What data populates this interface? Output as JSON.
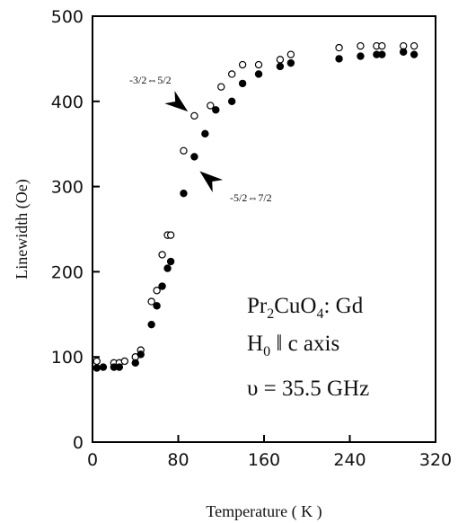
{
  "chart_data": {
    "type": "scatter",
    "xlabel": "Temperature ( K )",
    "ylabel": "Linewidth (Oe)",
    "xlim": [
      0,
      320
    ],
    "ylim": [
      0,
      500
    ],
    "xticks": [
      "0",
      "80",
      "160",
      "240",
      "320"
    ],
    "yticks": [
      "0",
      "100",
      "200",
      "300",
      "400",
      "500"
    ],
    "grid": false,
    "series": [
      {
        "marker": "open-circle",
        "points": [
          [
            4,
            95
          ],
          [
            20,
            93
          ],
          [
            25,
            93
          ],
          [
            30,
            95
          ],
          [
            40,
            100
          ],
          [
            45,
            108
          ],
          [
            55,
            165
          ],
          [
            60,
            178
          ],
          [
            65,
            220
          ],
          [
            70,
            243
          ],
          [
            73,
            243
          ],
          [
            85,
            342
          ],
          [
            95,
            383
          ],
          [
            110,
            395
          ],
          [
            120,
            417
          ],
          [
            130,
            432
          ],
          [
            140,
            443
          ],
          [
            155,
            443
          ],
          [
            175,
            449
          ],
          [
            185,
            455
          ],
          [
            230,
            463
          ],
          [
            250,
            465
          ],
          [
            265,
            465
          ],
          [
            270,
            465
          ],
          [
            290,
            465
          ],
          [
            300,
            465
          ]
        ]
      },
      {
        "marker": "filled-circle",
        "points": [
          [
            4,
            87
          ],
          [
            10,
            88
          ],
          [
            20,
            88
          ],
          [
            25,
            88
          ],
          [
            40,
            93
          ],
          [
            45,
            103
          ],
          [
            55,
            138
          ],
          [
            60,
            160
          ],
          [
            65,
            183
          ],
          [
            70,
            204
          ],
          [
            73,
            212
          ],
          [
            85,
            292
          ],
          [
            95,
            335
          ],
          [
            105,
            362
          ],
          [
            115,
            390
          ],
          [
            130,
            400
          ],
          [
            140,
            421
          ],
          [
            155,
            432
          ],
          [
            175,
            441
          ],
          [
            185,
            445
          ],
          [
            230,
            450
          ],
          [
            250,
            453
          ],
          [
            265,
            455
          ],
          [
            270,
            455
          ],
          [
            290,
            458
          ],
          [
            300,
            455
          ]
        ]
      }
    ],
    "annotations": [
      {
        "label": "-3/2⇔5/2",
        "point_x": 89,
        "point_y": 388
      },
      {
        "label": "-5/2⇔7/2",
        "point_x": 100,
        "point_y": 318
      }
    ]
  },
  "sample_info": {
    "line1_main": "Pr",
    "line1_sub1": "2",
    "line1_mid": "CuO",
    "line1_sub2": "4",
    "line1_tail": ": Gd",
    "line2_main": "H",
    "line2_sub": "0",
    "line2_tail": " ‖ c axis",
    "line3": "υ = 35.5 GHz"
  }
}
